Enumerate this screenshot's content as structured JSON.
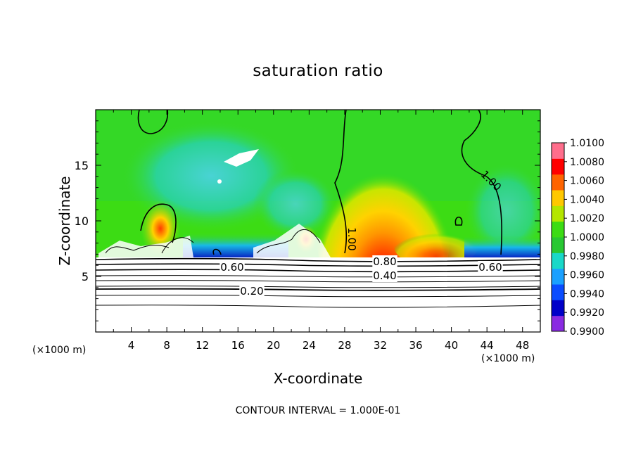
{
  "chart_data": {
    "type": "heatmap",
    "title": "saturation ratio",
    "xlabel": "X-coordinate",
    "ylabel": "Z-coordinate",
    "x_unit": "(×1000 m)",
    "y_unit": "(×1000 m)",
    "footer": "CONTOUR INTERVAL = 1.000E-01",
    "xlim": [
      0,
      50
    ],
    "ylim": [
      0,
      20
    ],
    "x_ticks": [
      "4",
      "8",
      "12",
      "16",
      "20",
      "24",
      "28",
      "32",
      "36",
      "40",
      "44",
      "48"
    ],
    "y_ticks": [
      "5",
      "10",
      "15"
    ],
    "colorbar": {
      "levels": [
        "1.0100",
        "1.0080",
        "1.0060",
        "1.0040",
        "1.0020",
        "1.0000",
        "0.9980",
        "0.9960",
        "0.9940",
        "0.9920",
        "0.9900"
      ],
      "colors": [
        "#8a2be2",
        "#0000c8",
        "#0a4cff",
        "#1aa0ff",
        "#19d8c8",
        "#28c832",
        "#3cdc14",
        "#b4e600",
        "#ffc800",
        "#ff6400",
        "#ff0000",
        "#ff6e8c"
      ]
    },
    "contour_labels": [
      "0.20",
      "0.40",
      "0.60",
      "0.80",
      "1.00",
      "0.60",
      "1.00"
    ],
    "contour_levels": [
      0.2,
      0.4,
      0.6,
      0.8,
      1.0
    ]
  }
}
